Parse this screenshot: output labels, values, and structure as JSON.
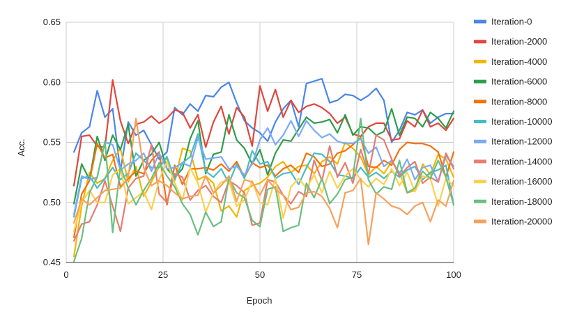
{
  "chart_data": {
    "type": "line",
    "title": "",
    "xlabel": "Epoch",
    "ylabel": "Acc.",
    "xlim": [
      0,
      100
    ],
    "ylim": [
      0.45,
      0.65
    ],
    "x_ticks": [
      "0",
      "25",
      "50",
      "75",
      "100"
    ],
    "y_ticks": [
      "0.45",
      "0.50",
      "0.55",
      "0.60",
      "0.65"
    ],
    "grid": true,
    "legend_position": "right",
    "x": [
      2,
      4,
      6,
      8,
      10,
      12,
      14,
      16,
      18,
      20,
      22,
      24,
      26,
      28,
      30,
      32,
      34,
      36,
      38,
      40,
      42,
      44,
      46,
      48,
      50,
      52,
      54,
      56,
      58,
      60,
      62,
      64,
      66,
      68,
      70,
      72,
      74,
      76,
      78,
      80,
      82,
      84,
      86,
      88,
      90,
      92,
      94,
      96,
      98,
      100
    ],
    "series": [
      {
        "name": "Iteration-0",
        "color": "#4a86e8",
        "values": [
          0.542,
          0.558,
          0.563,
          0.593,
          0.571,
          0.578,
          0.526,
          0.567,
          0.556,
          0.56,
          0.548,
          0.536,
          0.542,
          0.579,
          0.573,
          0.582,
          0.576,
          0.589,
          0.588,
          0.596,
          0.6,
          0.583,
          0.568,
          0.562,
          0.558,
          0.551,
          0.567,
          0.578,
          0.585,
          0.563,
          0.599,
          0.601,
          0.603,
          0.583,
          0.585,
          0.59,
          0.589,
          0.585,
          0.589,
          0.595,
          0.585,
          0.55,
          0.56,
          0.575,
          0.573,
          0.577,
          0.566,
          0.571,
          0.574,
          0.574
        ]
      },
      {
        "name": "Iteration-2000",
        "color": "#e0473c",
        "values": [
          0.514,
          0.555,
          0.556,
          0.547,
          0.546,
          0.602,
          0.568,
          0.549,
          0.565,
          0.567,
          0.572,
          0.566,
          0.57,
          0.577,
          0.575,
          0.562,
          0.573,
          0.546,
          0.567,
          0.58,
          0.557,
          0.579,
          0.571,
          0.547,
          0.597,
          0.576,
          0.594,
          0.571,
          0.585,
          0.575,
          0.58,
          0.582,
          0.579,
          0.574,
          0.566,
          0.571,
          0.557,
          0.555,
          0.563,
          0.566,
          0.566,
          0.552,
          0.553,
          0.568,
          0.563,
          0.577,
          0.563,
          0.566,
          0.56,
          0.57
        ]
      },
      {
        "name": "Iteration-4000",
        "color": "#f2b600",
        "values": [
          0.455,
          0.497,
          0.525,
          0.516,
          0.52,
          0.535,
          0.545,
          0.517,
          0.53,
          0.505,
          0.517,
          0.53,
          0.537,
          0.518,
          0.545,
          0.543,
          0.519,
          0.522,
          0.516,
          0.493,
          0.497,
          0.488,
          0.51,
          0.514,
          0.516,
          0.521,
          0.53,
          0.534,
          0.525,
          0.53,
          0.531,
          0.524,
          0.534,
          0.538,
          0.532,
          0.55,
          0.545,
          0.538,
          0.523,
          0.53,
          0.524,
          0.534,
          0.525,
          0.508,
          0.51,
          0.532,
          0.523,
          0.54,
          0.536,
          0.521
        ]
      },
      {
        "name": "Iteration-6000",
        "color": "#2f9d4a",
        "values": [
          0.499,
          0.532,
          0.519,
          0.555,
          0.535,
          0.556,
          0.544,
          0.565,
          0.522,
          0.535,
          0.54,
          0.55,
          0.528,
          0.521,
          0.528,
          0.553,
          0.568,
          0.524,
          0.54,
          0.542,
          0.573,
          0.552,
          0.545,
          0.532,
          0.544,
          0.523,
          0.541,
          0.552,
          0.551,
          0.561,
          0.571,
          0.566,
          0.567,
          0.569,
          0.558,
          0.573,
          0.556,
          0.563,
          0.562,
          0.556,
          0.559,
          0.578,
          0.556,
          0.571,
          0.57,
          0.563,
          0.575,
          0.57,
          0.562,
          0.576
        ]
      },
      {
        "name": "Iteration-8000",
        "color": "#f5700b",
        "values": [
          0.471,
          0.507,
          0.518,
          0.549,
          0.537,
          0.54,
          0.513,
          0.52,
          0.526,
          0.524,
          0.535,
          0.542,
          0.498,
          0.531,
          0.515,
          0.528,
          0.528,
          0.529,
          0.527,
          0.532,
          0.526,
          0.534,
          0.521,
          0.533,
          0.529,
          0.531,
          0.522,
          0.528,
          0.531,
          0.525,
          0.541,
          0.538,
          0.53,
          0.532,
          0.541,
          0.543,
          0.548,
          0.554,
          0.53,
          0.529,
          0.535,
          0.531,
          0.544,
          0.55,
          0.549,
          0.549,
          0.547,
          0.542,
          0.521,
          0.542
        ]
      },
      {
        "name": "Iteration-10000",
        "color": "#46bdc6",
        "values": [
          0.488,
          0.52,
          0.522,
          0.512,
          0.52,
          0.529,
          0.519,
          0.524,
          0.541,
          0.535,
          0.529,
          0.529,
          0.538,
          0.519,
          0.533,
          0.538,
          0.557,
          0.526,
          0.521,
          0.528,
          0.516,
          0.532,
          0.52,
          0.543,
          0.532,
          0.534,
          0.52,
          0.524,
          0.525,
          0.515,
          0.529,
          0.541,
          0.54,
          0.534,
          0.523,
          0.522,
          0.52,
          0.529,
          0.521,
          0.525,
          0.52,
          0.526,
          0.521,
          0.527,
          0.53,
          0.519,
          0.525,
          0.527,
          0.531,
          0.498
        ]
      },
      {
        "name": "Iteration-12000",
        "color": "#7baaf7",
        "values": [
          0.49,
          0.522,
          0.519,
          0.521,
          0.55,
          0.548,
          0.527,
          0.532,
          0.535,
          0.541,
          0.526,
          0.541,
          0.528,
          0.529,
          0.533,
          0.53,
          0.554,
          0.536,
          0.537,
          0.538,
          0.528,
          0.53,
          0.523,
          0.532,
          0.552,
          0.562,
          0.548,
          0.556,
          0.568,
          0.555,
          0.568,
          0.56,
          0.554,
          0.557,
          0.551,
          0.549,
          0.549,
          0.553,
          0.541,
          0.546,
          0.53,
          0.535,
          0.524,
          0.536,
          0.519,
          0.529,
          0.531,
          0.517,
          0.539,
          0.53
        ]
      },
      {
        "name": "Iteration-14000",
        "color": "#e67c73",
        "values": [
          0.468,
          0.482,
          0.484,
          0.498,
          0.518,
          0.497,
          0.476,
          0.512,
          0.52,
          0.522,
          0.548,
          0.507,
          0.5,
          0.524,
          0.521,
          0.502,
          0.51,
          0.514,
          0.505,
          0.5,
          0.518,
          0.514,
          0.508,
          0.481,
          0.483,
          0.519,
          0.517,
          0.506,
          0.499,
          0.509,
          0.505,
          0.535,
          0.518,
          0.547,
          0.521,
          0.533,
          0.516,
          0.544,
          0.524,
          0.556,
          0.552,
          0.536,
          0.522,
          0.529,
          0.534,
          0.516,
          0.521,
          0.517,
          0.541,
          0.528
        ]
      },
      {
        "name": "Iteration-16000",
        "color": "#fcd04f",
        "values": [
          0.476,
          0.5,
          0.51,
          0.5,
          0.5,
          0.523,
          0.528,
          0.499,
          0.504,
          0.509,
          0.494,
          0.519,
          0.534,
          0.516,
          0.502,
          0.529,
          0.516,
          0.492,
          0.508,
          0.517,
          0.518,
          0.497,
          0.502,
          0.518,
          0.5,
          0.498,
          0.52,
          0.487,
          0.513,
          0.52,
          0.512,
          0.523,
          0.508,
          0.526,
          0.512,
          0.522,
          0.528,
          0.519,
          0.513,
          0.52,
          0.515,
          0.528,
          0.514,
          0.525,
          0.509,
          0.522,
          0.52,
          0.497,
          0.52,
          0.514
        ]
      },
      {
        "name": "Iteration-18000",
        "color": "#6bbf80",
        "values": [
          0.451,
          0.47,
          0.508,
          0.521,
          0.551,
          0.475,
          0.53,
          0.512,
          0.498,
          0.51,
          0.52,
          0.533,
          0.522,
          0.513,
          0.499,
          0.49,
          0.473,
          0.492,
          0.48,
          0.484,
          0.52,
          0.508,
          0.504,
          0.485,
          0.48,
          0.511,
          0.513,
          0.476,
          0.479,
          0.481,
          0.516,
          0.504,
          0.52,
          0.499,
          0.507,
          0.519,
          0.521,
          0.57,
          0.519,
          0.507,
          0.513,
          0.511,
          0.535,
          0.508,
          0.512,
          0.526,
          0.52,
          0.535,
          0.521,
          0.498
        ]
      },
      {
        "name": "Iteration-20000",
        "color": "#f7a15a",
        "values": [
          0.483,
          0.503,
          0.498,
          0.504,
          0.51,
          0.511,
          0.512,
          0.521,
          0.57,
          0.529,
          0.514,
          0.518,
          0.514,
          0.508,
          0.503,
          0.505,
          0.506,
          0.522,
          0.508,
          0.514,
          0.522,
          0.501,
          0.519,
          0.517,
          0.506,
          0.519,
          0.511,
          0.506,
          0.494,
          0.496,
          0.508,
          0.509,
          0.505,
          0.495,
          0.479,
          0.508,
          0.51,
          0.52,
          0.465,
          0.508,
          0.503,
          0.497,
          0.495,
          0.49,
          0.497,
          0.5,
          0.484,
          0.502,
          0.497,
          0.518
        ]
      }
    ]
  }
}
